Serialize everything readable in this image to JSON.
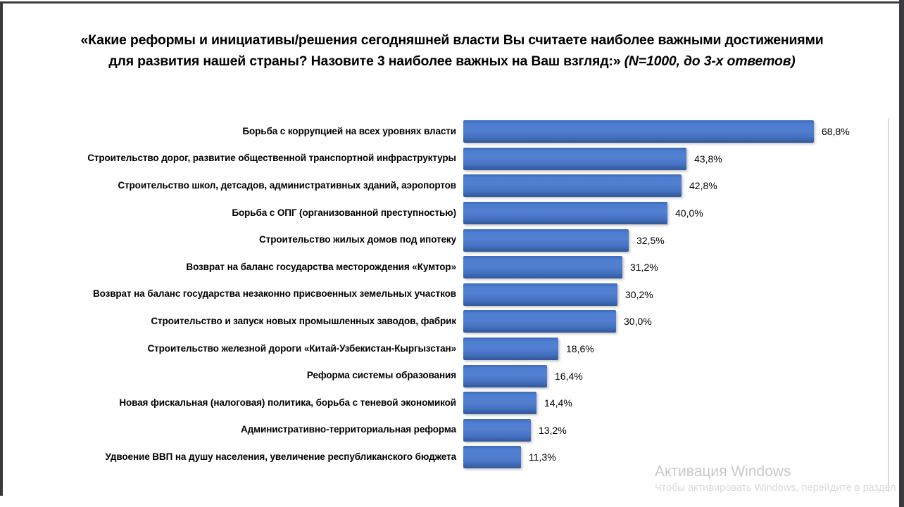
{
  "title": {
    "question": "«Какие реформы и инициативы/решения сегодняшней власти Вы считаете наиболее важными достижениями для развития нашей страны? Назовите 3 наиболее важных на Ваш взгляд:»",
    "note": "(N=1000, до 3-х ответов)"
  },
  "colors": {
    "bar_fill": "#4472C4",
    "title_text": "#000000",
    "title_note": "#1f3a93",
    "frame": "#3a3a3c",
    "watermark": "#c9c9c9"
  },
  "chart_data": {
    "type": "bar",
    "orientation": "horizontal",
    "title": "«Какие реформы и инициативы/решения сегодняшней власти Вы считаете наиболее важными достижениями для развития нашей страны? Назовите 3 наиболее важных на Ваш взгляд:» (N=1000, до 3-х ответов)",
    "xlabel": "",
    "ylabel": "",
    "xlim": [
      0,
      80
    ],
    "grid": false,
    "legend": false,
    "value_label_format": "comma-decimal percent",
    "categories": [
      "Борьба с коррупцией на всех уровнях власти",
      "Строительство дорог, развитие общественной транспортной инфраструктуры",
      "Строительство школ, детсадов, административных зданий, аэропортов",
      "Борьба с ОПГ (организованной преступностью)",
      "Строительство жилых домов под ипотеку",
      "Возврат на баланс государства месторождения «Кумтор»",
      "Возврат на баланс государства незаконно присвоенных земельных участков",
      "Строительство и запуск новых промышленных заводов, фабрик",
      "Строительство железной дороги «Китай-Узбекистан-Кыргызстан»",
      "Реформа системы образования",
      "Новая фискальная (налоговая) политика, борьба с теневой экономикой",
      "Административно-территориальная реформа",
      "Удвоение ВВП на душу населения, увеличение республиканского бюджета"
    ],
    "values": [
      68.8,
      43.8,
      42.8,
      40.0,
      32.5,
      31.2,
      30.2,
      30.0,
      18.6,
      16.4,
      14.4,
      13.2,
      11.3
    ],
    "value_labels": [
      "68,8%",
      "43,8%",
      "42,8%",
      "40,0%",
      "32,5%",
      "31,2%",
      "30,2%",
      "30,0%",
      "18,6%",
      "16,4%",
      "14,4%",
      "13,2%",
      "11,3%"
    ]
  },
  "watermark": {
    "line1": "Активация Windows",
    "line2": "Чтобы активировать Windows, перейдите в раздел"
  }
}
